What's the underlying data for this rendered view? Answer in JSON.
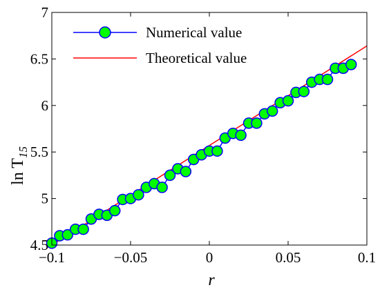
{
  "chart_data": {
    "type": "line",
    "xlabel": "r",
    "ylabel": {
      "base": "ln T",
      "subscript": "15"
    },
    "xlim": [
      -0.1,
      0.1
    ],
    "ylim": [
      4.5,
      7
    ],
    "xticks": [
      -0.1,
      -0.05,
      0,
      0.05,
      0.1
    ],
    "xtick_labels": [
      "−0.1",
      "−0.05",
      "0",
      "0.05",
      "0.1"
    ],
    "yticks": [
      4.5,
      5,
      5.5,
      6,
      6.5,
      7
    ],
    "ytick_labels": [
      "4.5",
      "5",
      "5.5",
      "6",
      "6.5",
      "7"
    ],
    "grid": false,
    "legend_position": "top-left",
    "series": [
      {
        "name": "Numerical value",
        "style": "line-with-markers",
        "line_color": "#0000ff",
        "marker_fill": "#00ff00",
        "marker_edge": "#0000ff",
        "x": [
          -0.1,
          -0.095,
          -0.09,
          -0.085,
          -0.08,
          -0.075,
          -0.07,
          -0.065,
          -0.06,
          -0.055,
          -0.05,
          -0.045,
          -0.04,
          -0.035,
          -0.03,
          -0.025,
          -0.02,
          -0.015,
          -0.01,
          -0.005,
          0,
          0.005,
          0.01,
          0.015,
          0.02,
          0.025,
          0.03,
          0.035,
          0.04,
          0.045,
          0.05,
          0.055,
          0.06,
          0.065,
          0.07,
          0.075,
          0.08,
          0.085,
          0.09
        ],
        "y": [
          4.52,
          4.6,
          4.61,
          4.67,
          4.67,
          4.78,
          4.83,
          4.82,
          4.87,
          4.99,
          5.0,
          5.04,
          5.12,
          5.16,
          5.12,
          5.25,
          5.32,
          5.29,
          5.42,
          5.47,
          5.51,
          5.51,
          5.65,
          5.7,
          5.68,
          5.81,
          5.81,
          5.91,
          5.94,
          6.03,
          6.05,
          6.14,
          6.15,
          6.25,
          6.28,
          6.28,
          6.4,
          6.4,
          6.44
        ]
      },
      {
        "name": "Theoretical value",
        "style": "line",
        "line_color": "#ff0000",
        "x": [
          -0.1,
          0.1
        ],
        "y": [
          4.5,
          6.64
        ]
      }
    ]
  }
}
